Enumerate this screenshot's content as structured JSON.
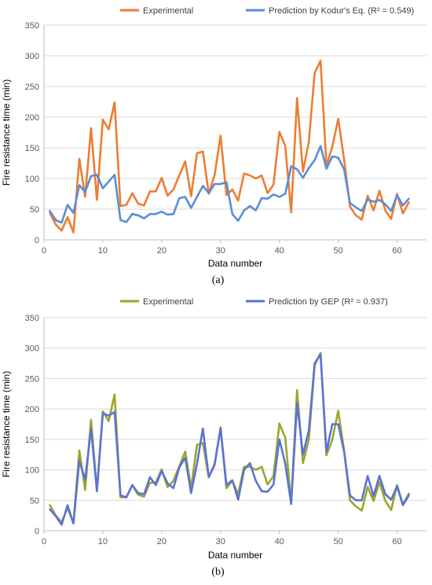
{
  "chart_data": [
    {
      "type": "line",
      "panel_label": "(a)",
      "xlabel": "Data number",
      "ylabel": "Fire resistance time (min)",
      "xlim": [
        0,
        65
      ],
      "ylim": [
        0,
        350
      ],
      "xticks": [
        0,
        10,
        20,
        30,
        40,
        50,
        60
      ],
      "yticks": [
        0,
        50,
        100,
        150,
        200,
        250,
        300,
        350
      ],
      "grid": "horizontal",
      "legend_position": "top",
      "series": [
        {
          "name": "Experimental",
          "color": "#ED7D31",
          "x": [
            1,
            2,
            3,
            4,
            5,
            6,
            7,
            8,
            9,
            10,
            11,
            12,
            13,
            14,
            15,
            16,
            17,
            18,
            19,
            20,
            21,
            22,
            23,
            24,
            25,
            26,
            27,
            28,
            29,
            30,
            31,
            32,
            33,
            34,
            35,
            36,
            37,
            38,
            39,
            40,
            41,
            42,
            43,
            44,
            45,
            46,
            47,
            48,
            49,
            50,
            51,
            52,
            53,
            54,
            55,
            56,
            57,
            58,
            59,
            60,
            61,
            62
          ],
          "values": [
            44,
            25,
            15,
            37,
            12,
            132,
            70,
            182,
            65,
            196,
            180,
            224,
            55,
            57,
            76,
            59,
            56,
            79,
            79,
            101,
            72,
            82,
            105,
            128,
            71,
            141,
            144,
            75,
            106,
            170,
            73,
            82,
            64,
            108,
            105,
            100,
            105,
            76,
            90,
            176,
            153,
            45,
            231,
            111,
            160,
            272,
            292,
            121,
            152,
            197,
            131,
            54,
            40,
            33,
            72,
            48,
            80,
            48,
            34,
            75,
            43,
            61
          ]
        },
        {
          "name": "Prediction by Kodur's Eq. (R² = 0.549)",
          "color": "#5B8DD6",
          "x": [
            1,
            2,
            3,
            4,
            5,
            6,
            7,
            8,
            9,
            10,
            11,
            12,
            13,
            14,
            15,
            16,
            17,
            18,
            19,
            20,
            21,
            22,
            23,
            24,
            25,
            26,
            27,
            28,
            29,
            30,
            31,
            32,
            33,
            34,
            35,
            36,
            37,
            38,
            39,
            40,
            41,
            42,
            43,
            44,
            45,
            46,
            47,
            48,
            49,
            50,
            51,
            52,
            53,
            54,
            55,
            56,
            57,
            58,
            59,
            60,
            61,
            62
          ],
          "values": [
            47,
            32,
            28,
            57,
            44,
            89,
            78,
            104,
            106,
            84,
            95,
            106,
            32,
            29,
            42,
            40,
            35,
            42,
            42,
            46,
            41,
            42,
            68,
            70,
            52,
            70,
            88,
            76,
            91,
            91,
            94,
            42,
            31,
            48,
            55,
            48,
            68,
            67,
            74,
            70,
            75,
            120,
            115,
            101,
            117,
            130,
            153,
            116,
            136,
            134,
            115,
            60,
            53,
            47,
            66,
            62,
            65,
            58,
            47,
            73,
            56,
            67
          ]
        }
      ]
    },
    {
      "type": "line",
      "panel_label": "(b)",
      "xlabel": "Data number",
      "ylabel": "Fire resistance time (min)",
      "xlim": [
        0,
        65
      ],
      "ylim": [
        0,
        350
      ],
      "xticks": [
        0,
        10,
        20,
        30,
        40,
        50,
        60
      ],
      "yticks": [
        0,
        50,
        100,
        150,
        200,
        250,
        300,
        350
      ],
      "grid": "horizontal",
      "legend_position": "top",
      "series": [
        {
          "name": "Experimental",
          "color": "#9AA62C",
          "x": [
            1,
            2,
            3,
            4,
            5,
            6,
            7,
            8,
            9,
            10,
            11,
            12,
            13,
            14,
            15,
            16,
            17,
            18,
            19,
            20,
            21,
            22,
            23,
            24,
            25,
            26,
            27,
            28,
            29,
            30,
            31,
            32,
            33,
            34,
            35,
            36,
            37,
            38,
            39,
            40,
            41,
            42,
            43,
            44,
            45,
            46,
            47,
            48,
            49,
            50,
            51,
            52,
            53,
            54,
            55,
            56,
            57,
            58,
            59,
            60,
            61,
            62
          ],
          "values": [
            42,
            25,
            14,
            38,
            12,
            132,
            67,
            182,
            66,
            196,
            180,
            224,
            55,
            55,
            75,
            59,
            56,
            79,
            79,
            101,
            72,
            82,
            106,
            130,
            70,
            141,
            144,
            88,
            108,
            170,
            70,
            82,
            60,
            105,
            105,
            100,
            105,
            76,
            90,
            176,
            153,
            45,
            231,
            111,
            150,
            272,
            292,
            124,
            150,
            197,
            132,
            50,
            40,
            33,
            72,
            49,
            80,
            49,
            34,
            75,
            43,
            61
          ]
        },
        {
          "name": "Prediction by GEP (R² = 0.937)",
          "color": "#5B73D6",
          "x": [
            1,
            2,
            3,
            4,
            5,
            6,
            7,
            8,
            9,
            10,
            11,
            12,
            13,
            14,
            15,
            16,
            17,
            18,
            19,
            20,
            21,
            22,
            23,
            24,
            25,
            26,
            27,
            28,
            29,
            30,
            31,
            32,
            33,
            34,
            35,
            36,
            37,
            38,
            39,
            40,
            41,
            42,
            43,
            44,
            45,
            46,
            47,
            48,
            49,
            50,
            51,
            52,
            53,
            54,
            55,
            56,
            57,
            58,
            59,
            60,
            61,
            62
          ],
          "values": [
            35,
            24,
            10,
            42,
            12,
            115,
            84,
            168,
            65,
            193,
            189,
            195,
            58,
            55,
            75,
            62,
            60,
            88,
            75,
            98,
            78,
            70,
            104,
            120,
            62,
            110,
            168,
            88,
            110,
            168,
            75,
            83,
            51,
            100,
            111,
            82,
            65,
            64,
            76,
            150,
            110,
            44,
            210,
            125,
            165,
            275,
            290,
            130,
            175,
            175,
            130,
            58,
            50,
            50,
            90,
            57,
            90,
            60,
            51,
            73,
            42,
            58
          ]
        }
      ]
    }
  ]
}
